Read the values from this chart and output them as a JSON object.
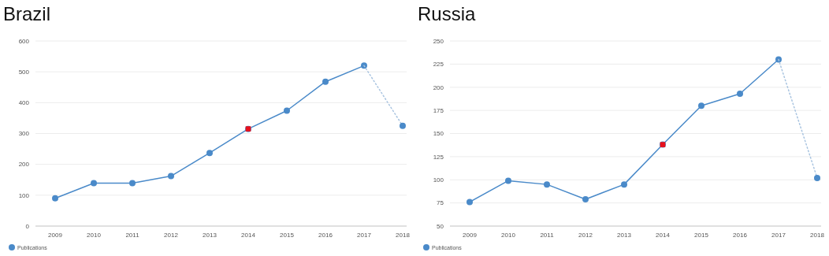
{
  "chart_data": [
    {
      "type": "line",
      "title": "Brazil",
      "categories": [
        "2009",
        "2010",
        "2011",
        "2012",
        "2013",
        "2014",
        "2015",
        "2016",
        "2017",
        "2018"
      ],
      "ylim": [
        0,
        600
      ],
      "yticks": [
        0,
        100,
        200,
        300,
        400,
        500,
        600
      ],
      "grid": "y",
      "legend": "bottom left",
      "series": [
        {
          "name": "Publications",
          "color": "#4a8ac9",
          "marker": "circle",
          "values": [
            90,
            139,
            139,
            162,
            237,
            315,
            374,
            468,
            520,
            null
          ]
        },
        {
          "color": "#a9c4e0",
          "line_style": "dotted",
          "marker": "none",
          "values": [
            null,
            null,
            null,
            null,
            null,
            null,
            null,
            null,
            520,
            325
          ]
        },
        {
          "type": "scatter",
          "color": "#4a8ac9",
          "marker": "circle",
          "values": [
            null,
            null,
            null,
            null,
            null,
            null,
            null,
            null,
            null,
            325
          ]
        },
        {
          "type": "scatter",
          "color": "#e8101c",
          "marker": "square",
          "values": [
            null,
            null,
            null,
            null,
            null,
            315,
            null,
            null,
            null,
            null
          ]
        }
      ]
    },
    {
      "type": "line",
      "title": "Russia",
      "categories": [
        "2009",
        "2010",
        "2011",
        "2012",
        "2013",
        "2014",
        "2015",
        "2016",
        "2017",
        "2018"
      ],
      "ylim": [
        50,
        250
      ],
      "yticks": [
        50,
        75,
        100,
        125,
        150,
        175,
        200,
        225,
        250
      ],
      "grid": "y",
      "legend": "bottom left",
      "series": [
        {
          "name": "Publications",
          "color": "#4a8ac9",
          "marker": "circle",
          "values": [
            76,
            99,
            95,
            79,
            95,
            138,
            180,
            193,
            230,
            null
          ]
        },
        {
          "color": "#a9c4e0",
          "line_style": "dotted",
          "marker": "none",
          "values": [
            null,
            null,
            null,
            null,
            null,
            null,
            null,
            null,
            230,
            102
          ]
        },
        {
          "type": "scatter",
          "color": "#4a8ac9",
          "marker": "circle",
          "values": [
            null,
            null,
            null,
            null,
            null,
            null,
            null,
            null,
            null,
            102
          ]
        },
        {
          "type": "scatter",
          "color": "#e8101c",
          "marker": "square",
          "values": [
            null,
            null,
            null,
            null,
            null,
            138,
            null,
            null,
            null,
            null
          ]
        }
      ]
    }
  ]
}
